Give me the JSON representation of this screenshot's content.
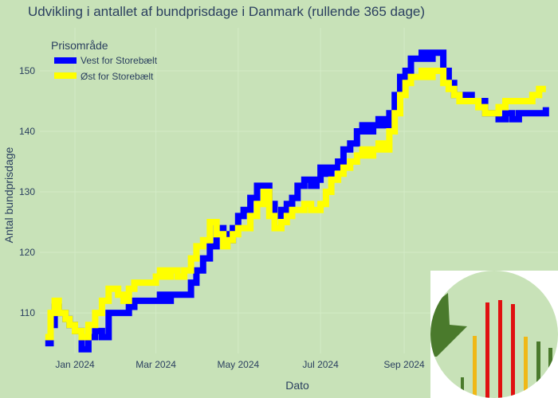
{
  "chart_data": {
    "type": "line",
    "title": "Udvikling i antallet af bundprisdage i Danmark (rullende 365 dage)",
    "xlabel": "Dato",
    "ylabel": "Antal bundprisdage",
    "legend_title": "Prisområde",
    "legend_position": "top-left",
    "x_ticks": [
      {
        "label": "Jan 2024",
        "date": "2024-01-01"
      },
      {
        "label": "Mar 2024",
        "date": "2024-03-01"
      },
      {
        "label": "May 2024",
        "date": "2024-05-01"
      },
      {
        "label": "Jul 2024",
        "date": "2024-07-01"
      },
      {
        "label": "Sep 2024",
        "date": "2024-09-01"
      }
    ],
    "y_ticks": [
      110,
      120,
      130,
      140,
      150
    ],
    "xlim": [
      "2023-12-06",
      "2024-12-24"
    ],
    "ylim": [
      103.3,
      157.1
    ],
    "grid": true,
    "series": [
      {
        "name": "Vest for Storebælt",
        "color": "#0000ff",
        "x": [
          "2023-12-10",
          "2023-12-14",
          "2023-12-17",
          "2023-12-20",
          "2023-12-25",
          "2023-12-28",
          "2024-01-01",
          "2024-01-06",
          "2024-01-11",
          "2024-01-16",
          "2024-01-21",
          "2024-01-26",
          "2024-02-02",
          "2024-02-06",
          "2024-02-10",
          "2024-02-14",
          "2024-02-22",
          "2024-03-01",
          "2024-03-04",
          "2024-03-08",
          "2024-03-12",
          "2024-03-17",
          "2024-03-22",
          "2024-03-27",
          "2024-03-31",
          "2024-04-05",
          "2024-04-10",
          "2024-04-15",
          "2024-04-20",
          "2024-04-23",
          "2024-04-27",
          "2024-05-01",
          "2024-05-05",
          "2024-05-10",
          "2024-05-15",
          "2024-05-20",
          "2024-05-24",
          "2024-05-28",
          "2024-06-02",
          "2024-06-06",
          "2024-06-10",
          "2024-06-14",
          "2024-06-19",
          "2024-06-24",
          "2024-06-28",
          "2024-07-01",
          "2024-07-05",
          "2024-07-09",
          "2024-07-14",
          "2024-07-18",
          "2024-07-23",
          "2024-07-28",
          "2024-08-01",
          "2024-08-05",
          "2024-08-09",
          "2024-08-13",
          "2024-08-17",
          "2024-08-21",
          "2024-08-25",
          "2024-08-29",
          "2024-09-02",
          "2024-09-06",
          "2024-09-10",
          "2024-09-14",
          "2024-09-18",
          "2024-09-22",
          "2024-09-26",
          "2024-09-30",
          "2024-10-04",
          "2024-10-08",
          "2024-10-12",
          "2024-10-16",
          "2024-10-21",
          "2024-10-26",
          "2024-10-31",
          "2024-11-05",
          "2024-11-10",
          "2024-11-15",
          "2024-11-20",
          "2024-11-25",
          "2024-11-30",
          "2024-12-05",
          "2024-12-10",
          "2024-12-15"
        ],
        "values": [
          105,
          108,
          111,
          110,
          109,
          108,
          107,
          104,
          106,
          107,
          106,
          110,
          110,
          110,
          111,
          112,
          112,
          112,
          113,
          112,
          113,
          113,
          113,
          115,
          117,
          119,
          121,
          124,
          123,
          122,
          124,
          126,
          127,
          129,
          131,
          131,
          128,
          126,
          127,
          128,
          129,
          131,
          132,
          131,
          132,
          134,
          133,
          134,
          135,
          137,
          138,
          140,
          141,
          140,
          141,
          142,
          141,
          143,
          146,
          149,
          150,
          152,
          152,
          153,
          152,
          153,
          153,
          150,
          148,
          146,
          146,
          146,
          145,
          145,
          143,
          143,
          142,
          143,
          142,
          143,
          143,
          143,
          143,
          144
        ]
      },
      {
        "name": "Øst for Storebælt",
        "color": "#ffff00",
        "x": [
          "2023-12-10",
          "2023-12-14",
          "2023-12-17",
          "2023-12-20",
          "2023-12-25",
          "2023-12-28",
          "2024-01-01",
          "2024-01-06",
          "2024-01-11",
          "2024-01-16",
          "2024-01-21",
          "2024-01-26",
          "2024-02-02",
          "2024-02-06",
          "2024-02-10",
          "2024-02-14",
          "2024-02-22",
          "2024-03-01",
          "2024-03-04",
          "2024-03-08",
          "2024-03-12",
          "2024-03-17",
          "2024-03-22",
          "2024-03-27",
          "2024-03-31",
          "2024-04-05",
          "2024-04-10",
          "2024-04-15",
          "2024-04-20",
          "2024-04-23",
          "2024-04-27",
          "2024-05-01",
          "2024-05-05",
          "2024-05-10",
          "2024-05-15",
          "2024-05-20",
          "2024-05-24",
          "2024-05-28",
          "2024-06-02",
          "2024-06-06",
          "2024-06-10",
          "2024-06-14",
          "2024-06-19",
          "2024-06-24",
          "2024-06-28",
          "2024-07-01",
          "2024-07-05",
          "2024-07-09",
          "2024-07-14",
          "2024-07-18",
          "2024-07-23",
          "2024-07-28",
          "2024-08-01",
          "2024-08-05",
          "2024-08-09",
          "2024-08-13",
          "2024-08-17",
          "2024-08-21",
          "2024-08-25",
          "2024-08-29",
          "2024-09-02",
          "2024-09-06",
          "2024-09-10",
          "2024-09-14",
          "2024-09-18",
          "2024-09-22",
          "2024-09-26",
          "2024-09-30",
          "2024-10-04",
          "2024-10-08",
          "2024-10-12",
          "2024-10-16",
          "2024-10-21",
          "2024-10-26",
          "2024-10-31",
          "2024-11-05",
          "2024-11-10",
          "2024-11-15",
          "2024-11-20",
          "2024-11-25",
          "2024-11-30",
          "2024-12-05",
          "2024-12-10",
          "2024-12-15"
        ],
        "values": [
          106,
          110,
          112,
          110,
          109,
          108,
          107,
          106,
          108,
          110,
          112,
          114,
          113,
          112,
          114,
          115,
          115,
          116,
          117,
          116,
          117,
          116,
          117,
          119,
          121,
          122,
          125,
          123,
          121,
          122,
          123,
          124,
          124,
          126,
          128,
          130,
          126,
          124,
          125,
          126,
          127,
          127,
          128,
          127,
          127,
          128,
          130,
          132,
          133,
          134,
          135,
          136,
          137,
          136,
          137,
          138,
          137,
          140,
          143,
          146,
          148,
          149,
          149,
          150,
          149,
          150,
          150,
          148,
          147,
          146,
          145,
          145,
          145,
          144,
          143,
          143,
          144,
          145,
          145,
          145,
          145,
          146,
          147,
          147
        ]
      }
    ]
  },
  "inset_colors": {
    "green_dark": "#4a7a2c",
    "yellow": "#f0b816",
    "red": "#e01010"
  }
}
